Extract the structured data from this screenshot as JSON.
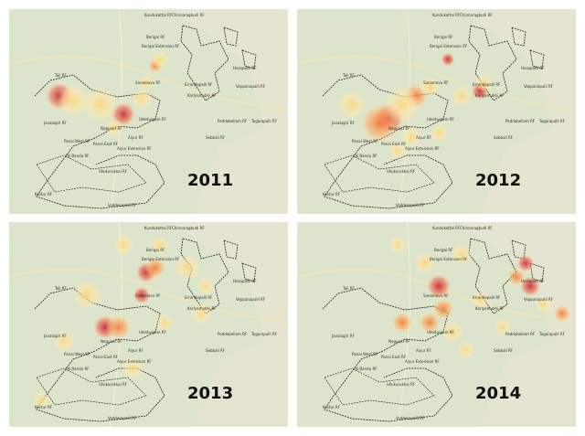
{
  "panels": [
    {
      "year": "2011"
    },
    {
      "year": "2012"
    },
    {
      "year": "2013"
    },
    {
      "year": "2014"
    }
  ],
  "labels": [
    "Kundukottai RF",
    "Chinnaragbudi RF",
    "Berigai RF",
    "Berigai Extension RF",
    "Sanamavu RF",
    "Tali RF",
    "Javalagiri RF",
    "Nogunur RF",
    "Udedurgam RF",
    "Panai West RF",
    "Panai East RF",
    "Uli Bandu RF",
    "Aiyur RF",
    "Aiyur Extension RF",
    "Kestur RF",
    "Vodderapalli RF",
    "Peddabellam RF",
    "Togarapalli RF",
    "Sebbali RF",
    "Errandapalli RF",
    "Karlyamubhi RF",
    "Hosapatti RF",
    "Veppanapalli RF",
    "Ullukurukkai RF"
  ]
}
